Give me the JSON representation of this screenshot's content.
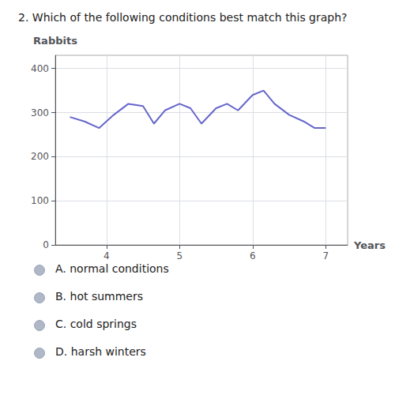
{
  "chart_data": {
    "type": "line",
    "title": "2. Which of the following conditions best match this graph?",
    "xlabel": "Years",
    "ylabel": "Rabbits",
    "x": [
      3.5,
      3.7,
      3.9,
      4.1,
      4.3,
      4.5,
      4.65,
      4.8,
      5.0,
      5.15,
      5.3,
      5.5,
      5.65,
      5.8,
      6.0,
      6.15,
      6.3,
      6.5,
      6.7,
      6.85,
      7.0
    ],
    "values": [
      290,
      280,
      265,
      295,
      320,
      315,
      275,
      305,
      320,
      310,
      275,
      310,
      320,
      305,
      340,
      350,
      320,
      295,
      280,
      265,
      265
    ],
    "color": "#6666cc",
    "xlim": [
      3.3,
      7.3
    ],
    "ylim": [
      0,
      430
    ],
    "xticks": [
      4,
      5,
      6,
      7
    ],
    "yticks": [
      0,
      100,
      200,
      300,
      400
    ],
    "grid": true,
    "annotations": [
      "A. normal conditions",
      "B. hot summers",
      "C. cold springs",
      "D. harsh winters"
    ]
  }
}
